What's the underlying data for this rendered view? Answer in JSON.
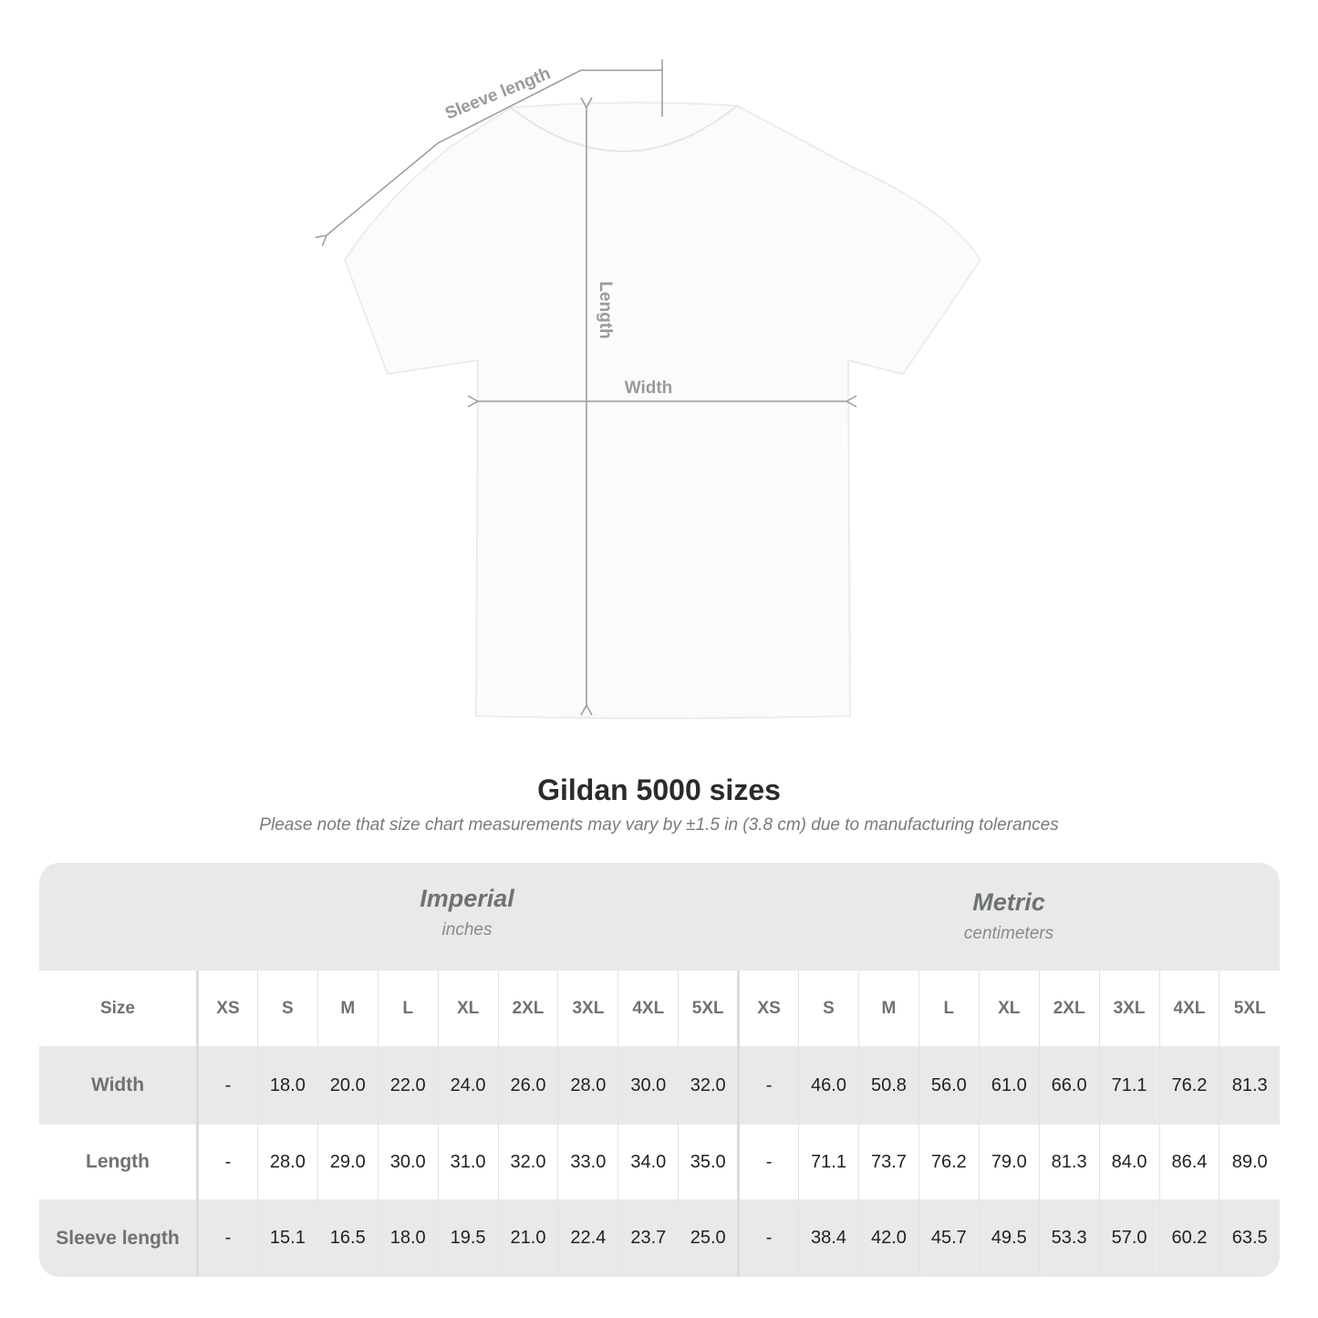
{
  "diagram": {
    "sleeve_label": "Sleeve length",
    "length_label": "Length",
    "width_label": "Width",
    "line_color": "#9a9a9a"
  },
  "title": "Gildan 5000 sizes",
  "note": "Please note that size chart measurements may vary by ±1.5 in (3.8 cm) due to manufacturing tolerances",
  "table": {
    "imperial": {
      "name": "Imperial",
      "unit": "inches"
    },
    "metric": {
      "name": "Metric",
      "unit": "centimeters"
    },
    "size_label": "Size",
    "sizes": [
      "XS",
      "S",
      "M",
      "L",
      "XL",
      "2XL",
      "3XL",
      "4XL",
      "5XL"
    ],
    "rows": [
      {
        "label": "Width",
        "imperial": [
          "-",
          "18.0",
          "20.0",
          "22.0",
          "24.0",
          "26.0",
          "28.0",
          "30.0",
          "32.0"
        ],
        "metric": [
          "-",
          "46.0",
          "50.8",
          "56.0",
          "61.0",
          "66.0",
          "71.1",
          "76.2",
          "81.3"
        ]
      },
      {
        "label": "Length",
        "imperial": [
          "-",
          "28.0",
          "29.0",
          "30.0",
          "31.0",
          "32.0",
          "33.0",
          "34.0",
          "35.0"
        ],
        "metric": [
          "-",
          "71.1",
          "73.7",
          "76.2",
          "79.0",
          "81.3",
          "84.0",
          "86.4",
          "89.0"
        ]
      },
      {
        "label": "Sleeve length",
        "imperial": [
          "-",
          "15.1",
          "16.5",
          "18.0",
          "19.5",
          "21.0",
          "22.4",
          "23.7",
          "25.0"
        ],
        "metric": [
          "-",
          "38.4",
          "42.0",
          "45.7",
          "49.5",
          "53.3",
          "57.0",
          "60.2",
          "63.5"
        ]
      }
    ]
  }
}
